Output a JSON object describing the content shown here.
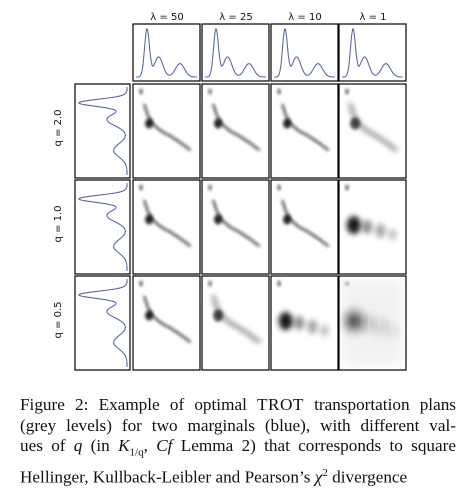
{
  "figure": {
    "column_headers": [
      "λ = 50",
      "λ = 25",
      "λ = 10",
      "λ = 1"
    ],
    "row_labels": [
      "q = 2.0",
      "q = 1.0",
      "q = 0.5"
    ],
    "colors": {
      "marginal_curve": "#5b6aa8",
      "frame": "#000000",
      "plan_ink": "#000000"
    }
  },
  "caption": {
    "label": "Figure 2:",
    "pieces": {
      "p1": "Example of optimal ",
      "trot": "TROT",
      "p2": " transportation plans",
      "l2": "(grey levels) for two marginals (blue), with different val-",
      "l3a": "ues of ",
      "q": "q",
      "l3b": " (in ",
      "K": "K",
      "sub": "1/q",
      "l3c": ", ",
      "cf": "Cf",
      "l3d": " Lemma 2) that corresponds to square",
      "l4a": "Hellinger, Kullback-Leibler and Pearson’s ",
      "chi": "χ",
      "sup": "2",
      "l4b": " divergence"
    }
  }
}
